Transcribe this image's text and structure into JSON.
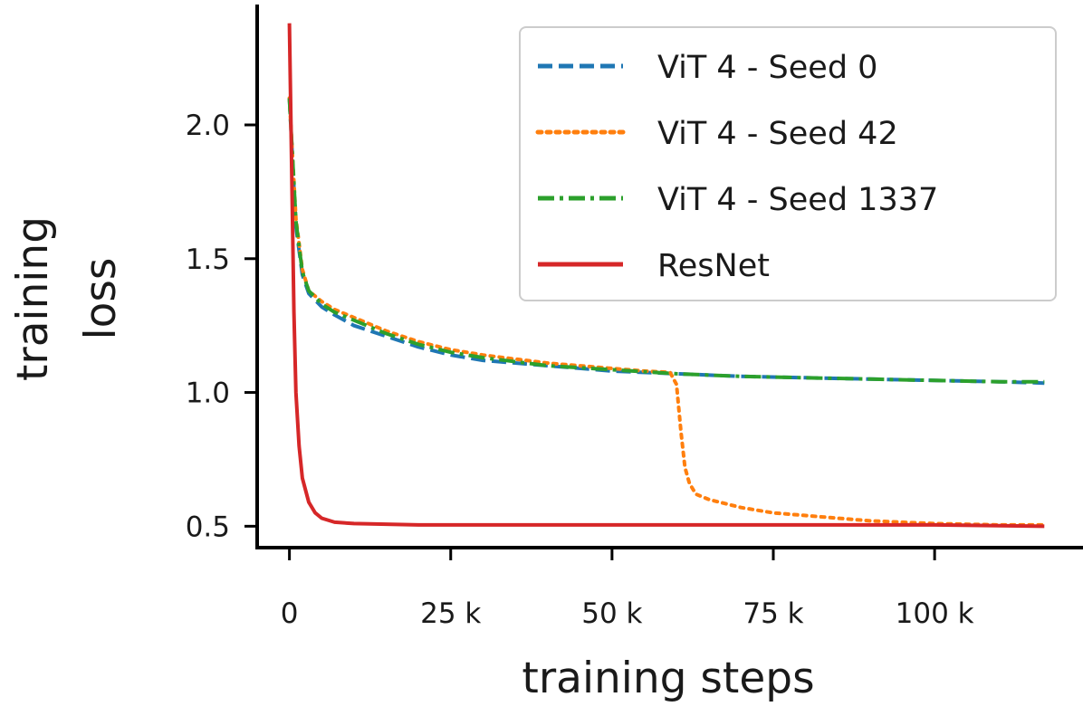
{
  "chart_data": {
    "type": "line",
    "title": "",
    "xlabel": "training steps",
    "ylabel_lines": [
      "training",
      "loss"
    ],
    "xlim": [
      -5000,
      123000
    ],
    "ylim": [
      0.42,
      2.45
    ],
    "x_ticks": [
      {
        "value": 0,
        "label": "0"
      },
      {
        "value": 25000,
        "label": "25 k"
      },
      {
        "value": 50000,
        "label": "50 k"
      },
      {
        "value": 75000,
        "label": "75 k"
      },
      {
        "value": 100000,
        "label": "100 k"
      }
    ],
    "y_ticks": [
      {
        "value": 0.5,
        "label": "0.5"
      },
      {
        "value": 1.0,
        "label": "1.0"
      },
      {
        "value": 1.5,
        "label": "1.5"
      },
      {
        "value": 2.0,
        "label": "2.0"
      }
    ],
    "grid": false,
    "legend_position": "top-right",
    "series": [
      {
        "name": "ViT 4 - Seed 0",
        "color": "#1f77b4",
        "dash": "dashed",
        "x": [
          0,
          1000,
          2000,
          3000,
          5000,
          7000,
          10000,
          15000,
          20000,
          25000,
          30000,
          40000,
          50000,
          60000,
          70000,
          80000,
          90000,
          100000,
          110000,
          117000
        ],
        "y": [
          2.1,
          1.62,
          1.44,
          1.37,
          1.32,
          1.29,
          1.25,
          1.21,
          1.17,
          1.14,
          1.12,
          1.1,
          1.08,
          1.07,
          1.06,
          1.055,
          1.05,
          1.045,
          1.04,
          1.035
        ]
      },
      {
        "name": "ViT 4 - Seed 42",
        "color": "#ff7f0e",
        "dash": "dotted",
        "x": [
          0,
          1000,
          2000,
          3000,
          5000,
          7000,
          10000,
          15000,
          20000,
          25000,
          30000,
          40000,
          50000,
          55000,
          59000,
          60000,
          60700,
          61300,
          62000,
          63000,
          65000,
          70000,
          75000,
          80000,
          85000,
          90000,
          95000,
          100000,
          110000,
          117000
        ],
        "y": [
          2.1,
          1.65,
          1.46,
          1.38,
          1.34,
          1.31,
          1.28,
          1.23,
          1.19,
          1.16,
          1.14,
          1.11,
          1.09,
          1.08,
          1.075,
          1.03,
          0.85,
          0.72,
          0.66,
          0.62,
          0.6,
          0.57,
          0.55,
          0.54,
          0.53,
          0.52,
          0.515,
          0.51,
          0.505,
          0.505
        ]
      },
      {
        "name": "ViT 4 - Seed 1337",
        "color": "#2ca02c",
        "dash": "dashdot",
        "x": [
          0,
          1000,
          2000,
          3000,
          5000,
          7000,
          10000,
          15000,
          20000,
          25000,
          30000,
          40000,
          50000,
          60000,
          70000,
          80000,
          90000,
          100000,
          110000,
          117000
        ],
        "y": [
          2.1,
          1.64,
          1.45,
          1.38,
          1.33,
          1.3,
          1.27,
          1.22,
          1.18,
          1.15,
          1.13,
          1.1,
          1.085,
          1.07,
          1.06,
          1.055,
          1.05,
          1.045,
          1.04,
          1.04
        ]
      },
      {
        "name": "ResNet",
        "color": "#d62728",
        "dash": "solid",
        "x": [
          0,
          300,
          700,
          1000,
          1500,
          2000,
          3000,
          4000,
          5000,
          7000,
          10000,
          20000,
          50000,
          100000,
          117000
        ],
        "y": [
          2.38,
          1.9,
          1.3,
          1.0,
          0.8,
          0.68,
          0.59,
          0.55,
          0.53,
          0.515,
          0.51,
          0.505,
          0.505,
          0.505,
          0.5
        ]
      }
    ]
  }
}
